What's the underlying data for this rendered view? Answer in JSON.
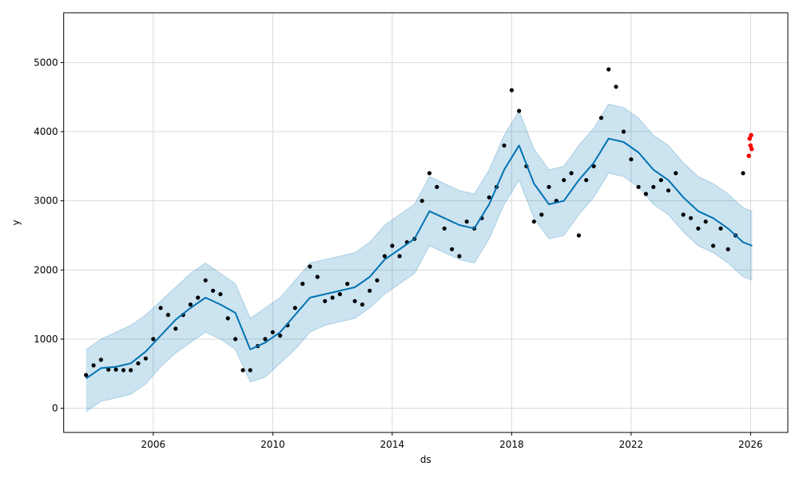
{
  "chart_data": {
    "type": "line",
    "title": "",
    "xlabel": "ds",
    "ylabel": "y",
    "x_range": [
      "2003-01-01",
      "2027-04-01"
    ],
    "ylim": [
      -350,
      5720
    ],
    "grid": true,
    "x_ticks": [
      {
        "date": "2006-01-01",
        "label": "2006"
      },
      {
        "date": "2010-01-01",
        "label": "2010"
      },
      {
        "date": "2014-01-01",
        "label": "2014"
      },
      {
        "date": "2018-01-01",
        "label": "2018"
      },
      {
        "date": "2022-01-01",
        "label": "2022"
      },
      {
        "date": "2026-01-01",
        "label": "2026"
      }
    ],
    "y_ticks": [
      {
        "value": 0,
        "label": "0"
      },
      {
        "value": 1000,
        "label": "1000"
      },
      {
        "value": 2000,
        "label": "2000"
      },
      {
        "value": 3000,
        "label": "3000"
      },
      {
        "value": 4000,
        "label": "4000"
      },
      {
        "value": 5000,
        "label": "5000"
      }
    ],
    "colors": {
      "forecast_line": "#0072b2",
      "interval_fill": "#0072b2",
      "observed_points": "#000000",
      "recent_points": "#ff0000"
    },
    "series": [
      {
        "kind": "forecast",
        "x": [
          "2003-10-01",
          "2004-04-01",
          "2004-10-01",
          "2005-04-01",
          "2005-10-01",
          "2006-04-01",
          "2006-10-01",
          "2007-04-01",
          "2007-10-01",
          "2008-04-01",
          "2008-10-01",
          "2009-04-01",
          "2009-10-01",
          "2010-04-01",
          "2010-10-01",
          "2011-04-01",
          "2011-10-01",
          "2012-04-01",
          "2012-10-01",
          "2013-04-01",
          "2013-10-01",
          "2014-04-01",
          "2014-10-01",
          "2015-04-01",
          "2015-10-01",
          "2016-04-01",
          "2016-10-01",
          "2017-04-01",
          "2017-10-01",
          "2018-04-01",
          "2018-10-01",
          "2019-04-01",
          "2019-10-01",
          "2020-04-01",
          "2020-10-01",
          "2021-04-01",
          "2021-10-01",
          "2022-04-01",
          "2022-10-01",
          "2023-04-01",
          "2023-10-01",
          "2024-04-01",
          "2024-10-01",
          "2025-04-01",
          "2025-10-01",
          "2026-01-20"
        ],
        "yhat": [
          430,
          580,
          600,
          650,
          820,
          1050,
          1280,
          1450,
          1600,
          1500,
          1380,
          850,
          950,
          1100,
          1350,
          1600,
          1650,
          1700,
          1750,
          1900,
          2150,
          2300,
          2450,
          2850,
          2750,
          2650,
          2600,
          2950,
          3450,
          3800,
          3250,
          2950,
          3000,
          3300,
          3550,
          3900,
          3850,
          3700,
          3450,
          3300,
          3050,
          2850,
          2750,
          2600,
          2400,
          2350
        ],
        "yhat_lower": [
          -50,
          100,
          150,
          200,
          350,
          600,
          800,
          950,
          1100,
          1000,
          850,
          380,
          450,
          650,
          850,
          1100,
          1200,
          1250,
          1300,
          1450,
          1650,
          1800,
          1950,
          2350,
          2250,
          2150,
          2100,
          2450,
          2950,
          3300,
          2750,
          2450,
          2500,
          2800,
          3050,
          3400,
          3350,
          3200,
          2950,
          2800,
          2550,
          2350,
          2250,
          2100,
          1900,
          1850
        ],
        "yhat_upper": [
          850,
          1000,
          1100,
          1200,
          1350,
          1550,
          1750,
          1950,
          2100,
          1950,
          1800,
          1300,
          1450,
          1600,
          1850,
          2100,
          2150,
          2200,
          2250,
          2400,
          2650,
          2800,
          2950,
          3350,
          3250,
          3150,
          3100,
          3450,
          3950,
          4300,
          3750,
          3450,
          3500,
          3800,
          4050,
          4400,
          4350,
          4200,
          3950,
          3800,
          3550,
          3350,
          3250,
          3100,
          2900,
          2850
        ]
      },
      {
        "kind": "observed",
        "x": [
          "2003-10-01",
          "2004-01-01",
          "2004-04-01",
          "2004-07-01",
          "2004-10-01",
          "2005-01-01",
          "2005-04-01",
          "2005-07-01",
          "2005-10-01",
          "2006-01-01",
          "2006-04-01",
          "2006-07-01",
          "2006-10-01",
          "2007-01-01",
          "2007-04-01",
          "2007-07-01",
          "2007-10-01",
          "2008-01-01",
          "2008-04-01",
          "2008-07-01",
          "2008-10-01",
          "2009-01-01",
          "2009-04-01",
          "2009-07-01",
          "2009-10-01",
          "2010-01-01",
          "2010-04-01",
          "2010-07-01",
          "2010-10-01",
          "2011-01-01",
          "2011-04-01",
          "2011-07-01",
          "2011-10-01",
          "2012-01-01",
          "2012-04-01",
          "2012-07-01",
          "2012-10-01",
          "2013-01-01",
          "2013-04-01",
          "2013-07-01",
          "2013-10-01",
          "2014-01-01",
          "2014-04-01",
          "2014-07-01",
          "2014-10-01",
          "2015-01-01",
          "2015-04-01",
          "2015-07-01",
          "2015-10-01",
          "2016-01-01",
          "2016-04-01",
          "2016-07-01",
          "2016-10-01",
          "2017-01-01",
          "2017-04-01",
          "2017-07-01",
          "2017-10-01",
          "2018-01-01",
          "2018-04-01",
          "2018-07-01",
          "2018-10-01",
          "2019-01-01",
          "2019-04-01",
          "2019-07-01",
          "2019-10-01",
          "2020-01-01",
          "2020-04-01",
          "2020-07-01",
          "2020-10-01",
          "2021-01-01",
          "2021-04-01",
          "2021-07-01",
          "2021-10-01",
          "2022-01-01",
          "2022-04-01",
          "2022-07-01",
          "2022-10-01",
          "2023-01-01",
          "2023-04-01",
          "2023-07-01",
          "2023-10-01",
          "2024-01-01",
          "2024-04-01",
          "2024-07-01",
          "2024-10-01",
          "2025-01-01",
          "2025-04-01",
          "2025-07-01",
          "2025-10-01"
        ],
        "y": [
          480,
          620,
          700,
          560,
          560,
          550,
          550,
          650,
          720,
          1000,
          1450,
          1350,
          1150,
          1350,
          1500,
          1600,
          1850,
          1700,
          1650,
          1300,
          1000,
          550,
          550,
          900,
          1000,
          1100,
          1050,
          1200,
          1450,
          1800,
          2050,
          1900,
          1550,
          1600,
          1650,
          1800,
          1550,
          1500,
          1700,
          1850,
          2200,
          2350,
          2200,
          2400,
          2450,
          3000,
          3400,
          3200,
          2600,
          2300,
          2200,
          2700,
          2600,
          2750,
          3050,
          3200,
          3800,
          4600,
          4300,
          3500,
          2700,
          2800,
          3200,
          3000,
          3300,
          3400,
          2500,
          3300,
          3500,
          4200,
          4900,
          4650,
          4000,
          3600,
          3200,
          3100,
          3200,
          3300,
          3150,
          3400,
          2800,
          2750,
          2600,
          2700,
          2350,
          2600,
          2300,
          2500,
          3400
        ]
      },
      {
        "kind": "recent",
        "x": [
          "2025-12-10",
          "2025-12-20",
          "2025-12-31",
          "2026-01-08",
          "2026-01-15"
        ],
        "y": [
          3650,
          3900,
          3800,
          3950,
          3750
        ]
      }
    ]
  }
}
